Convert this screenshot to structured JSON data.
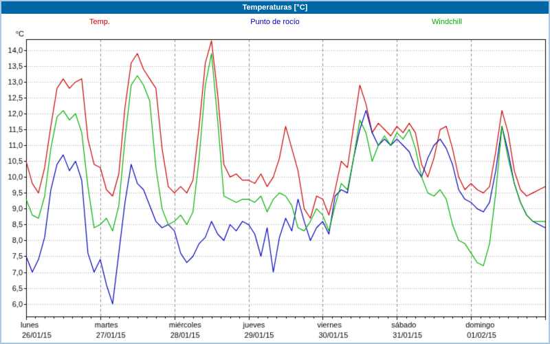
{
  "window": {
    "title": "Temperaturas [°C]"
  },
  "legend": [
    {
      "label": "Temp.",
      "color": "#cc0000"
    },
    {
      "label": "Punto de rocío",
      "color": "#0000bb"
    },
    {
      "label": "Windchill",
      "color": "#00b000"
    }
  ],
  "chart_data": {
    "type": "line",
    "title": "Temperaturas [°C]",
    "ylabel": "°C",
    "decimal_separator": ",",
    "ylim": [
      5.6,
      14.35
    ],
    "y_ticks": [
      6.0,
      6.5,
      7.0,
      7.5,
      8.0,
      8.5,
      9.0,
      9.5,
      10.0,
      10.5,
      11.0,
      11.5,
      12.0,
      12.5,
      13.0,
      13.5,
      14.0
    ],
    "grid": true,
    "legend_position": "top",
    "hours_per_day": 24,
    "sample_step_hours": 2,
    "x_days": [
      {
        "name": "lunes",
        "date": "26/01/15"
      },
      {
        "name": "martes",
        "date": "27/01/15"
      },
      {
        "name": "miércoles",
        "date": "28/01/15"
      },
      {
        "name": "jueves",
        "date": "29/01/15"
      },
      {
        "name": "viernes",
        "date": "30/01/15"
      },
      {
        "name": "sábado",
        "date": "31/01/15"
      },
      {
        "name": "domingo",
        "date": "01/02/15"
      }
    ],
    "series": [
      {
        "name": "Temp.",
        "color": "#cc0000",
        "values": [
          10.5,
          9.8,
          9.5,
          10.3,
          11.6,
          12.8,
          13.1,
          12.8,
          13.0,
          13.1,
          11.2,
          10.4,
          10.3,
          9.6,
          9.4,
          10.1,
          12.2,
          13.6,
          13.9,
          13.4,
          13.1,
          12.8,
          10.9,
          9.7,
          9.5,
          9.7,
          9.5,
          9.9,
          11.6,
          13.6,
          14.3,
          12.6,
          10.4,
          10.0,
          10.1,
          9.9,
          9.9,
          9.8,
          10.1,
          9.7,
          10.0,
          10.6,
          11.6,
          10.9,
          10.2,
          9.0,
          8.7,
          9.4,
          9.3,
          8.8,
          9.6,
          10.5,
          10.3,
          11.6,
          12.9,
          12.3,
          11.4,
          11.7,
          11.5,
          11.3,
          11.6,
          11.4,
          11.7,
          11.4,
          10.4,
          10.0,
          10.6,
          11.5,
          11.6,
          10.9,
          10.0,
          9.6,
          9.8,
          9.6,
          9.5,
          9.7,
          10.8,
          12.1,
          11.4,
          10.2,
          9.6,
          9.4,
          9.5,
          9.6,
          9.7
        ]
      },
      {
        "name": "Punto de rocío",
        "color": "#0000bb",
        "values": [
          7.5,
          7.0,
          7.4,
          8.1,
          9.6,
          10.4,
          10.7,
          10.2,
          10.5,
          9.9,
          7.6,
          7.0,
          7.4,
          6.6,
          6.0,
          7.6,
          9.2,
          10.4,
          9.8,
          9.6,
          9.1,
          8.6,
          8.4,
          8.5,
          8.3,
          7.6,
          7.3,
          7.5,
          7.9,
          8.1,
          8.6,
          8.2,
          8.0,
          8.5,
          8.3,
          8.6,
          8.5,
          8.2,
          7.5,
          8.4,
          7.0,
          8.1,
          8.7,
          8.3,
          9.3,
          8.6,
          8.0,
          8.4,
          8.6,
          8.2,
          9.4,
          9.6,
          9.5,
          10.6,
          11.5,
          12.1,
          11.4,
          11.0,
          11.2,
          11.0,
          11.2,
          11.0,
          10.8,
          10.3,
          10.0,
          10.6,
          11.0,
          11.2,
          10.9,
          10.4,
          9.6,
          9.3,
          9.2,
          9.0,
          8.9,
          9.2,
          10.2,
          11.6,
          10.8,
          9.8,
          9.2,
          8.8,
          8.6,
          8.5,
          8.4
        ]
      },
      {
        "name": "Windchill",
        "color": "#00b000",
        "values": [
          9.3,
          8.8,
          8.7,
          9.4,
          10.9,
          11.9,
          12.1,
          11.8,
          12.0,
          11.4,
          9.7,
          8.4,
          8.5,
          8.7,
          8.3,
          9.1,
          11.2,
          12.9,
          13.2,
          12.9,
          12.4,
          10.3,
          9.0,
          8.5,
          8.6,
          8.8,
          8.5,
          8.9,
          10.6,
          12.9,
          13.9,
          11.8,
          9.4,
          9.3,
          9.2,
          9.3,
          9.3,
          9.2,
          9.4,
          8.9,
          9.3,
          9.5,
          9.4,
          9.1,
          8.4,
          8.3,
          8.6,
          9.0,
          8.8,
          8.3,
          9.1,
          9.8,
          9.6,
          10.6,
          11.8,
          11.4,
          10.5,
          11.0,
          11.3,
          11.0,
          11.4,
          11.2,
          11.5,
          10.9,
          10.0,
          9.5,
          9.4,
          9.6,
          9.3,
          8.5,
          8.0,
          7.9,
          7.6,
          7.3,
          7.2,
          7.9,
          9.5,
          11.6,
          10.6,
          9.8,
          9.2,
          8.8,
          8.6,
          8.6,
          8.6
        ]
      }
    ]
  }
}
